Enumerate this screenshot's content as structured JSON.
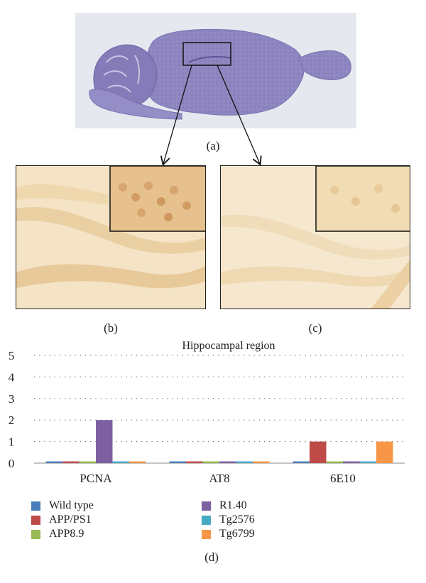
{
  "panels": {
    "a_label": "(a)",
    "b_label": "(b)",
    "c_label": "(c)",
    "d_label": "(d)"
  },
  "colors": {
    "tissue": "#8f86c2",
    "stain_background": "#f4e3c5",
    "stain_inset_b": "#e6c18e",
    "stain_inset_c": "#f1dcb4"
  },
  "chart_data": {
    "type": "bar",
    "title": "Hippocampal region",
    "xlabel": "",
    "ylabel": "",
    "categories": [
      "PCNA",
      "AT8",
      "6E10"
    ],
    "ylim": [
      0,
      5
    ],
    "yticks": [
      0,
      1,
      2,
      3,
      4,
      5
    ],
    "grid": "horizontal-dotted",
    "legend_position": "bottom",
    "series": [
      {
        "name": "Wild type",
        "color": "#4a7ebb",
        "values": [
          0.08,
          0.08,
          0.08
        ]
      },
      {
        "name": "APP/PS1",
        "color": "#be4b48",
        "values": [
          0.08,
          0.08,
          1
        ]
      },
      {
        "name": "APP8.9",
        "color": "#98b954",
        "values": [
          0.08,
          0.08,
          0.08
        ]
      },
      {
        "name": "R1.40",
        "color": "#7d60a0",
        "values": [
          2,
          0.08,
          0.08
        ]
      },
      {
        "name": "Tg2576",
        "color": "#46aac5",
        "values": [
          0.08,
          0.08,
          0.08
        ]
      },
      {
        "name": "Tg6799",
        "color": "#f79646",
        "values": [
          0.08,
          0.08,
          1
        ]
      }
    ]
  }
}
